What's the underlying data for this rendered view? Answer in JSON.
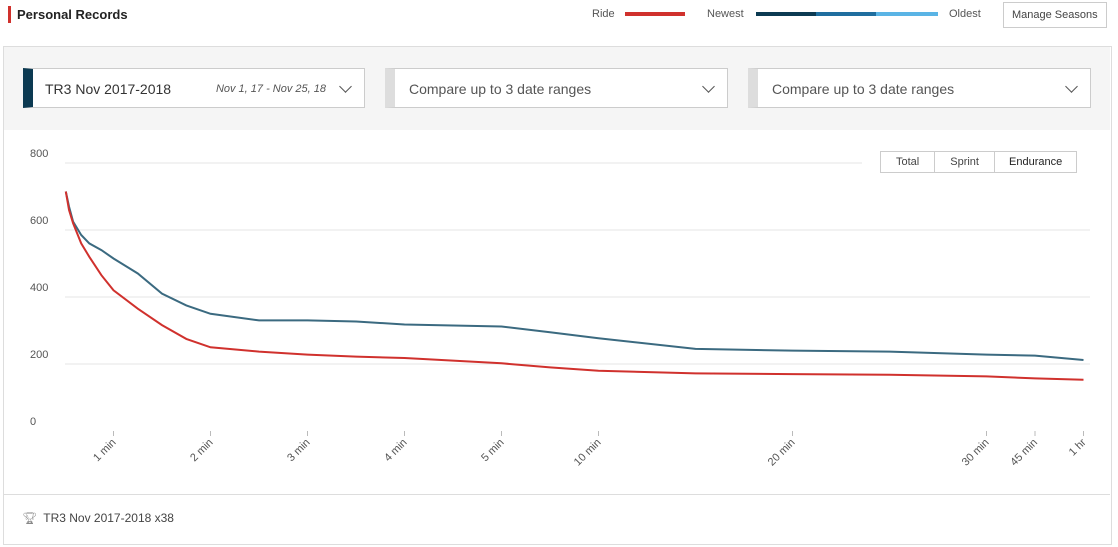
{
  "header": {
    "title": "Personal Records",
    "newest": "Newest",
    "oldest": "Oldest",
    "button": "Manage Seasons"
  },
  "selectors": [
    {
      "label": "TR3 Nov 2017-2018",
      "range": "Nov 1, 17 - Nov 25, 18"
    },
    {
      "label": "Compare up to 3 date ranges"
    },
    {
      "label": "Compare up to 3 date ranges"
    }
  ],
  "tabs": [
    "Total",
    "Sprint",
    "Endurance"
  ],
  "footer": "TR3 Nov 2017-2018 x38",
  "chart_data": {
    "type": "line",
    "x": [
      1,
      5,
      10,
      20,
      30,
      45,
      60,
      75,
      90,
      105,
      120,
      150,
      180,
      210,
      240,
      270,
      300,
      450,
      600,
      900,
      1200,
      1500,
      1800,
      2700,
      3600
    ],
    "xlim": [
      0,
      3600
    ],
    "xticks": [
      {
        "value": 60,
        "label": "1 min"
      },
      {
        "value": 120,
        "label": "2 min"
      },
      {
        "value": 180,
        "label": "3 min"
      },
      {
        "value": 240,
        "label": "4 min"
      },
      {
        "value": 300,
        "label": "5 min"
      },
      {
        "value": 600,
        "label": "10 min"
      },
      {
        "value": 1200,
        "label": "20 min"
      },
      {
        "value": 1800,
        "label": "30 min"
      },
      {
        "value": 2700,
        "label": "45 min"
      },
      {
        "value": 3600,
        "label": "1 hr"
      }
    ],
    "ylim": [
      0,
      800
    ],
    "yticks": [
      0,
      200,
      400,
      600,
      800
    ],
    "grid": true,
    "series": [
      {
        "name": "Ride",
        "color": "#d0312d",
        "values": [
          715,
          660,
          620,
          560,
          520,
          465,
          420,
          365,
          316,
          275,
          250,
          237,
          228,
          222,
          218,
          210,
          202,
          190,
          180,
          172,
          170,
          168,
          163,
          157,
          153
        ]
      },
      {
        "color": "#3b6a80",
        "values": [
          715,
          670,
          625,
          585,
          560,
          540,
          515,
          470,
          410,
          375,
          350,
          330,
          330,
          327,
          318,
          315,
          312,
          295,
          277,
          245,
          240,
          237,
          228,
          225,
          212
        ]
      }
    ]
  }
}
